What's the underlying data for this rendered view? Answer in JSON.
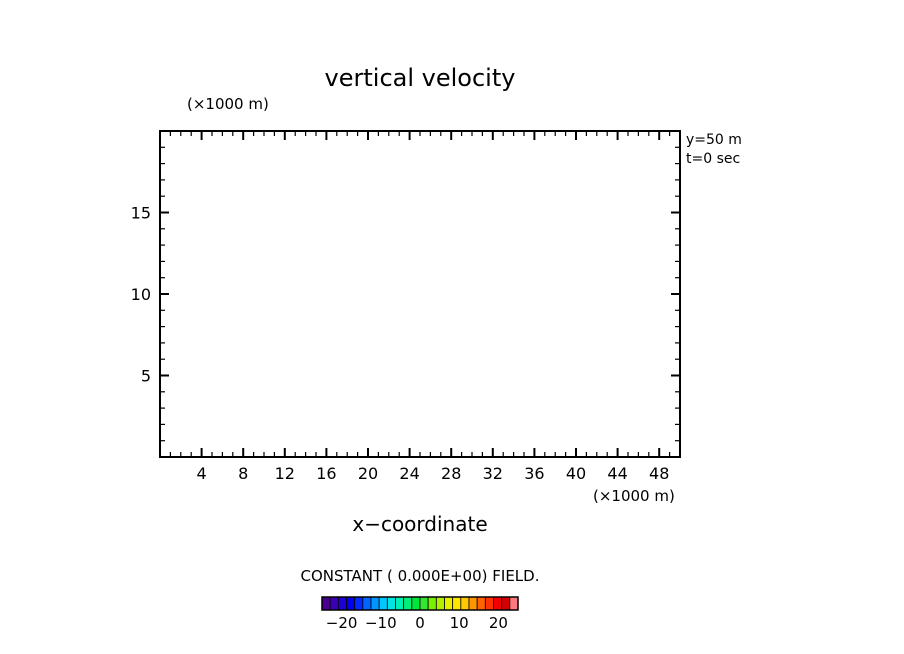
{
  "chart_data": {
    "type": "heatmap",
    "title": "vertical velocity",
    "xlabel": "x−coordinate",
    "x_units": "(×1000 m)",
    "y_units": "(×1000 m)",
    "xlim": [
      0,
      50
    ],
    "ylim": [
      0,
      20
    ],
    "x_ticks": [
      4,
      8,
      12,
      16,
      20,
      24,
      28,
      32,
      36,
      40,
      44,
      48
    ],
    "x_tick_labels": [
      "4",
      "8",
      "12",
      "16",
      "20",
      "24",
      "28",
      "32",
      "36",
      "40",
      "44",
      "48"
    ],
    "y_ticks": [
      5,
      10,
      15
    ],
    "y_tick_labels": [
      "5",
      "10",
      "15"
    ],
    "x_minor_step": 1,
    "y_minor_step": 1,
    "annotations": [
      "y=50  m",
      "t=0  sec"
    ],
    "field_note": "CONSTANT ( 0.000E+00) FIELD.",
    "field_value": 0,
    "colorbar": {
      "ticks": [
        -20,
        -10,
        0,
        10,
        20
      ],
      "tick_labels": [
        "−20",
        "−10",
        "0",
        "10",
        "20"
      ],
      "range": [
        -25,
        25
      ],
      "colors": [
        "#4b0090",
        "#3c00b4",
        "#1e00d2",
        "#0000f0",
        "#0028ff",
        "#0064ff",
        "#0096ff",
        "#00c8ff",
        "#00e6e6",
        "#00f0b4",
        "#00f078",
        "#00e63c",
        "#32e632",
        "#78f000",
        "#b4f000",
        "#e6f000",
        "#ffe600",
        "#ffc800",
        "#ff9600",
        "#ff6400",
        "#ff3200",
        "#f00000",
        "#d20000",
        "#ff7880"
      ]
    }
  }
}
